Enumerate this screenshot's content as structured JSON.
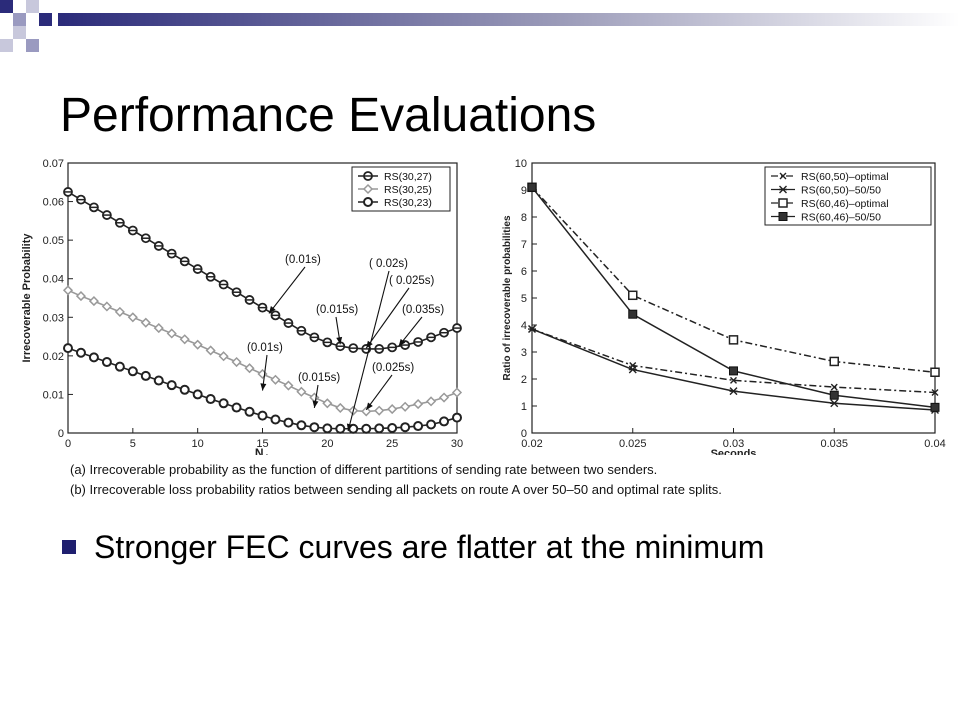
{
  "slide": {
    "title": "Performance Evaluations",
    "caption_a": "(a) Irrecoverable probability as the function of different partitions of sending rate between two senders.",
    "caption_b": "(b) Irrecoverable loss probability ratios between sending all packets on route A over 50–50 and optimal rate splits.",
    "bullet": "Stronger FEC curves are  flatter at the minimum",
    "accent_color": "#1f1f6f"
  },
  "chart_data": [
    {
      "type": "line",
      "xlabel": "N",
      "xlabel_sub": "A",
      "ylabel": "Irrecoverable Probability",
      "xlim": [
        0,
        30
      ],
      "ylim": [
        0,
        0.07
      ],
      "x_ticks": [
        "0",
        "5",
        "10",
        "15",
        "20",
        "25",
        "30"
      ],
      "y_ticks": [
        "0",
        "0.01",
        "0.02",
        "0.03",
        "0.04",
        "0.05",
        "0.06",
        "0.07"
      ],
      "x": [
        0,
        1,
        2,
        3,
        4,
        5,
        6,
        7,
        8,
        9,
        10,
        11,
        12,
        13,
        14,
        15,
        16,
        17,
        18,
        19,
        20,
        21,
        22,
        23,
        24,
        25,
        26,
        27,
        28,
        29,
        30
      ],
      "series": [
        {
          "name": "RS(30,27)",
          "marker": "circle-bar",
          "color": "#222222",
          "values": [
            0.0625,
            0.0605,
            0.0585,
            0.0565,
            0.0545,
            0.0525,
            0.0505,
            0.0485,
            0.0465,
            0.0445,
            0.0425,
            0.0405,
            0.0385,
            0.0365,
            0.0345,
            0.0325,
            0.0305,
            0.0285,
            0.0265,
            0.0248,
            0.0235,
            0.0225,
            0.022,
            0.0218,
            0.0218,
            0.0222,
            0.0228,
            0.0236,
            0.0248,
            0.026,
            0.0272
          ]
        },
        {
          "name": "RS(30,25)",
          "marker": "diamond-open",
          "color": "#999999",
          "values": [
            0.037,
            0.0355,
            0.0342,
            0.0328,
            0.0314,
            0.03,
            0.0286,
            0.0272,
            0.0258,
            0.0243,
            0.0229,
            0.0214,
            0.0199,
            0.0184,
            0.0168,
            0.0153,
            0.0138,
            0.0123,
            0.0107,
            0.0092,
            0.0077,
            0.0065,
            0.0058,
            0.0056,
            0.0058,
            0.0062,
            0.0068,
            0.0075,
            0.0082,
            0.0092,
            0.0105
          ]
        },
        {
          "name": "RS(30,23)",
          "marker": "circle-open",
          "color": "#222222",
          "values": [
            0.022,
            0.0208,
            0.0196,
            0.0184,
            0.0172,
            0.016,
            0.0148,
            0.0136,
            0.0124,
            0.0112,
            0.01,
            0.0088,
            0.0077,
            0.0066,
            0.0055,
            0.0045,
            0.0035,
            0.0027,
            0.002,
            0.0015,
            0.0012,
            0.0011,
            0.0011,
            0.0011,
            0.0012,
            0.0013,
            0.0015,
            0.0018,
            0.0022,
            0.003,
            0.004
          ]
        }
      ],
      "annotations": [
        {
          "text": "(0.01s)",
          "x": 15.5,
          "y": 0.031
        },
        {
          "text": "(0.015s)",
          "x": 21,
          "y": 0.023
        },
        {
          "text": "( 0.02s)",
          "x": 21.6,
          "y": 0.0005
        },
        {
          "text": "( 0.025s)",
          "x": 23,
          "y": 0.022
        },
        {
          "text": "(0.035s)",
          "x": 25.5,
          "y": 0.0225
        },
        {
          "text": "(0.01s)",
          "x": 15,
          "y": 0.011
        },
        {
          "text": "(0.015s)",
          "x": 19,
          "y": 0.0065
        },
        {
          "text": "(0.025s)",
          "x": 23,
          "y": 0.006
        }
      ],
      "legend": "top-right"
    },
    {
      "type": "line",
      "xlabel": "Seconds",
      "ylabel": "Ratio of irrecoverable probabilities",
      "xlim": [
        0.02,
        0.04
      ],
      "ylim": [
        0,
        10
      ],
      "x": [
        0.02,
        0.025,
        0.03,
        0.035,
        0.04
      ],
      "x_ticks": [
        "0.02",
        "0.025",
        "0.03",
        "0.035",
        "0.04"
      ],
      "y_ticks": [
        "0",
        "1",
        "2",
        "3",
        "4",
        "5",
        "6",
        "7",
        "8",
        "9",
        "10"
      ],
      "series": [
        {
          "name": "RS(60,50)–optimal",
          "marker": "x",
          "dash": "dashdot",
          "values": [
            3.85,
            2.5,
            1.95,
            1.7,
            1.5
          ]
        },
        {
          "name": "RS(60,50)–50/50",
          "marker": "star",
          "dash": "solid",
          "values": [
            3.85,
            2.35,
            1.55,
            1.1,
            0.85
          ]
        },
        {
          "name": "RS(60,46)–optimal",
          "marker": "square-open",
          "dash": "dashdot",
          "values": [
            9.1,
            5.1,
            3.45,
            2.65,
            2.25
          ]
        },
        {
          "name": "RS(60,46)–50/50",
          "marker": "square-filled",
          "dash": "solid",
          "values": [
            9.1,
            4.4,
            2.3,
            1.4,
            0.95
          ]
        }
      ],
      "legend": "top-right"
    }
  ]
}
